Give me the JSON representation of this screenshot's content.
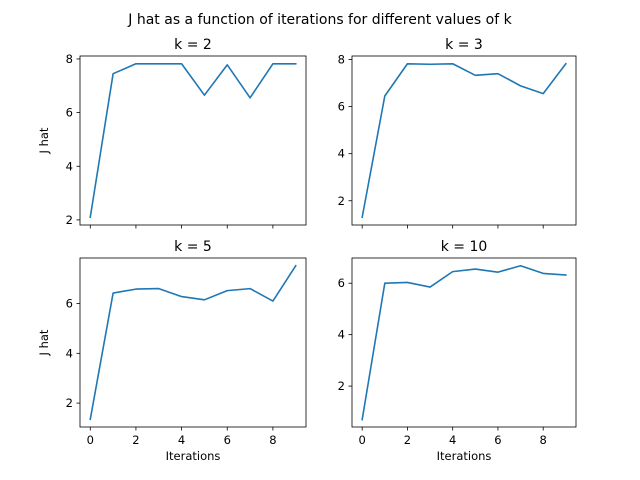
{
  "figure_title": "J hat as a function of iterations for different values of k",
  "chart_data": [
    {
      "type": "line",
      "title": "k = 2",
      "xlabel": "",
      "ylabel": "J hat",
      "x": [
        0,
        1,
        2,
        3,
        4,
        5,
        6,
        7,
        8,
        9
      ],
      "series": [
        {
          "values": [
            2.1,
            7.45,
            7.82,
            7.82,
            7.82,
            6.65,
            7.78,
            6.55,
            7.82,
            7.82
          ],
          "color": "#1f77b4"
        }
      ],
      "xlim": [
        -0.45,
        9.45
      ],
      "ylim": [
        1.81,
        8.11
      ],
      "xticks": [
        0,
        2,
        4,
        6,
        8
      ],
      "xticklabels": [],
      "yticks": [
        2,
        4,
        6,
        8
      ],
      "yticklabels": [
        "2",
        "4",
        "6",
        "8"
      ]
    },
    {
      "type": "line",
      "title": "k = 3",
      "xlabel": "",
      "ylabel": "",
      "x": [
        0,
        1,
        2,
        3,
        4,
        5,
        6,
        7,
        8,
        9
      ],
      "series": [
        {
          "values": [
            1.3,
            6.45,
            7.82,
            7.8,
            7.82,
            7.33,
            7.4,
            6.88,
            6.55,
            7.82
          ],
          "color": "#1f77b4"
        }
      ],
      "xlim": [
        -0.45,
        9.45
      ],
      "ylim": [
        0.97,
        8.15
      ],
      "xticks": [
        0,
        2,
        4,
        6,
        8
      ],
      "xticklabels": [],
      "yticks": [
        2,
        4,
        6,
        8
      ],
      "yticklabels": [
        "2",
        "4",
        "6",
        "8"
      ]
    },
    {
      "type": "line",
      "title": "k = 5",
      "xlabel": "Iterations",
      "ylabel": "J hat",
      "x": [
        0,
        1,
        2,
        3,
        4,
        5,
        6,
        7,
        8,
        9
      ],
      "series": [
        {
          "values": [
            1.35,
            6.42,
            6.58,
            6.6,
            6.28,
            6.15,
            6.52,
            6.6,
            6.1,
            7.52
          ],
          "color": "#1f77b4"
        }
      ],
      "xlim": [
        -0.45,
        9.45
      ],
      "ylim": [
        1.04,
        7.83
      ],
      "xticks": [
        0,
        2,
        4,
        6,
        8
      ],
      "xticklabels": [
        "0",
        "2",
        "4",
        "6",
        "8"
      ],
      "yticks": [
        2,
        4,
        6
      ],
      "yticklabels": [
        "2",
        "4",
        "6"
      ]
    },
    {
      "type": "line",
      "title": "k = 10",
      "xlabel": "Iterations",
      "ylabel": "",
      "x": [
        0,
        1,
        2,
        3,
        4,
        5,
        6,
        7,
        8,
        9
      ],
      "series": [
        {
          "values": [
            0.7,
            6.0,
            6.03,
            5.85,
            6.45,
            6.55,
            6.43,
            6.68,
            6.38,
            6.32
          ],
          "color": "#1f77b4"
        }
      ],
      "xlim": [
        -0.45,
        9.45
      ],
      "ylim": [
        0.41,
        6.98
      ],
      "xticks": [
        0,
        2,
        4,
        6,
        8
      ],
      "xticklabels": [
        "0",
        "2",
        "4",
        "6",
        "8"
      ],
      "yticks": [
        2,
        4,
        6
      ],
      "yticklabels": [
        "2",
        "4",
        "6"
      ]
    }
  ]
}
